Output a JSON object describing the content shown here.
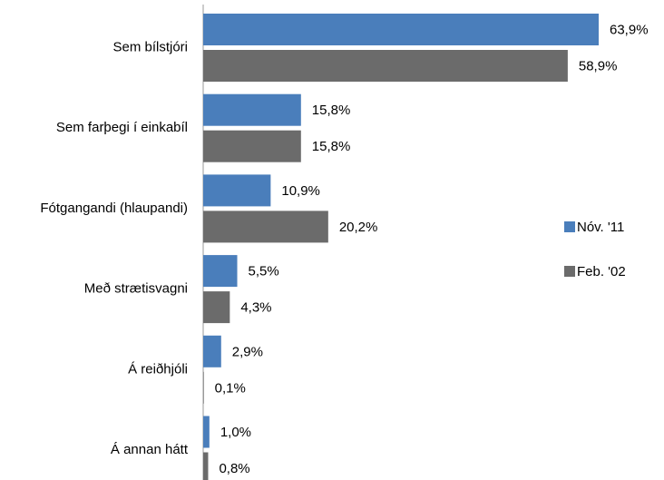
{
  "chart_data": {
    "type": "hbar",
    "categories": [
      "Sem bílstjóri",
      "Sem farþegi í einkabíl",
      "Fótgangandi (hlaupandi)",
      "Með strætisvagni",
      "Á reiðhjóli",
      "Á annan hátt"
    ],
    "series": [
      {
        "name": "Nóv. '11",
        "color": "#4a7ebb",
        "values": [
          63.9,
          15.8,
          10.9,
          5.5,
          2.9,
          1.0
        ],
        "value_labels": [
          "63,9%",
          "15,8%",
          "10,9%",
          "5,5%",
          "2,9%",
          "1,0%"
        ]
      },
      {
        "name": "Feb. '02",
        "color": "#6b6b6b",
        "values": [
          58.9,
          15.8,
          20.2,
          4.3,
          0.1,
          0.8
        ],
        "value_labels": [
          "58,9%",
          "15,8%",
          "20,2%",
          "4,3%",
          "0,1%",
          "0,8%"
        ]
      }
    ],
    "legend": "right"
  }
}
